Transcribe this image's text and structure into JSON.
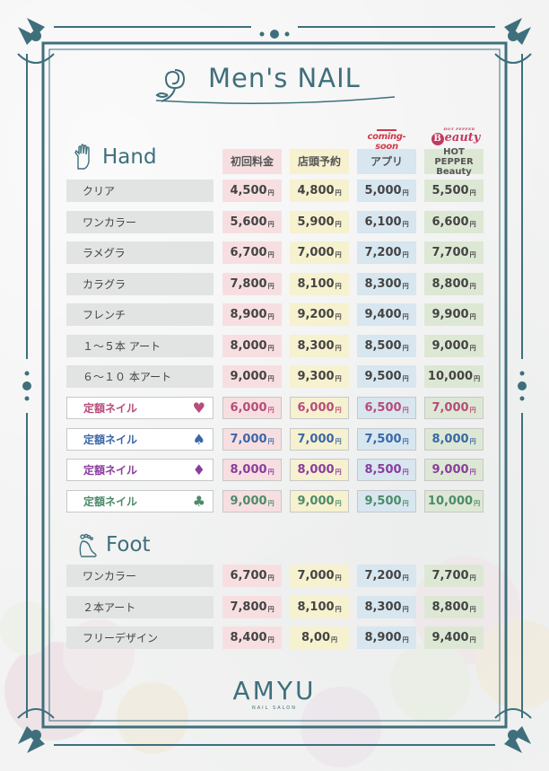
{
  "title": "Men's NAIL",
  "sections": {
    "hand": "Hand",
    "foot": "Foot"
  },
  "logos": {
    "coming": "coming-soon",
    "beauty_b": "B",
    "beauty_word": "eauty",
    "beauty_tiny": "HOT PEPPER"
  },
  "columns": [
    {
      "label": "初回料金",
      "color": "#f7dfe1"
    },
    {
      "label": "店頭予約",
      "color": "#f6f1cf"
    },
    {
      "label": "アプリ",
      "color": "#d7e6ef"
    },
    {
      "label": "HOT PEPPER Beauty",
      "line1": "HOT PEPPER",
      "line2": "Beauty",
      "color": "#dde8d4"
    }
  ],
  "yen": "円",
  "hand_rows": [
    {
      "label": "クリア",
      "prices": [
        "4,500",
        "4,800",
        "5,000",
        "5,500"
      ]
    },
    {
      "label": "ワンカラー",
      "prices": [
        "5,600",
        "5,900",
        "6,100",
        "6,600"
      ]
    },
    {
      "label": "ラメグラ",
      "prices": [
        "6,700",
        "7,000",
        "7,200",
        "7,700"
      ]
    },
    {
      "label": "カラグラ",
      "prices": [
        "7,800",
        "8,100",
        "8,300",
        "8,800"
      ]
    },
    {
      "label": "フレンチ",
      "prices": [
        "8,900",
        "9,200",
        "9,400",
        "9,900"
      ]
    },
    {
      "label": "１～５本 アート",
      "prices": [
        "8,000",
        "8,300",
        "8,500",
        "9,000"
      ]
    },
    {
      "label": "６～１０ 本アート",
      "prices": [
        "9,000",
        "9,300",
        "9,500",
        "10,000"
      ]
    }
  ],
  "teiki_rows": [
    {
      "label": "定額ネイル",
      "suit": "♥",
      "suit_name": "heart-icon",
      "color": "#b84c7a",
      "prices": [
        "6,000",
        "6,000",
        "6,500",
        "7,000"
      ]
    },
    {
      "label": "定額ネイル",
      "suit": "♠",
      "suit_name": "spade-icon",
      "color": "#3b67a8",
      "prices": [
        "7,000",
        "7,000",
        "7,500",
        "8,000"
      ]
    },
    {
      "label": "定額ネイル",
      "suit": "♦",
      "suit_name": "diamond-icon",
      "color": "#8a3d9e",
      "prices": [
        "8,000",
        "8,000",
        "8,500",
        "9,000"
      ]
    },
    {
      "label": "定額ネイル",
      "suit": "♣",
      "suit_name": "club-icon",
      "color": "#4d8a6a",
      "prices": [
        "9,000",
        "9,000",
        "9,500",
        "10,000"
      ]
    }
  ],
  "foot_rows": [
    {
      "label": "ワンカラー",
      "prices": [
        "6,700",
        "7,000",
        "7,200",
        "7,700"
      ]
    },
    {
      "label": "２本アート",
      "prices": [
        "7,800",
        "8,100",
        "8,300",
        "8,800"
      ]
    },
    {
      "label": "フリーデザイン",
      "prices": [
        "8,400",
        "8,00",
        "8,900",
        "9,400"
      ]
    }
  ],
  "brand": {
    "name": "AMYU",
    "sub": "NAIL SALON"
  },
  "colors": {
    "accent": "#3f6f7c",
    "frame": "#3f6f7c"
  }
}
